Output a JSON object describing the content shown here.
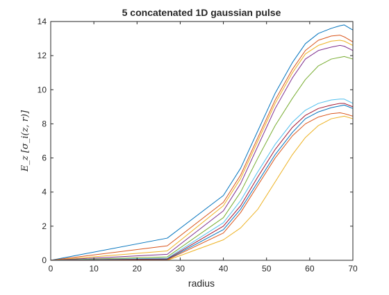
{
  "chart_data": {
    "type": "line",
    "title": "5 concatenated 1D gaussian pulse",
    "xlabel": "radius",
    "ylabel": "E_z [σ_i(z, r)]",
    "xlim": [
      0,
      70
    ],
    "ylim": [
      0,
      14
    ],
    "xticks": [
      0,
      10,
      20,
      30,
      40,
      50,
      60,
      70
    ],
    "yticks": [
      0,
      2,
      4,
      6,
      8,
      10,
      12,
      14
    ],
    "grid": false,
    "legend": "none",
    "x": [
      0,
      27,
      40,
      44,
      48,
      52,
      56,
      59,
      62,
      65,
      67,
      68,
      70
    ],
    "series": [
      {
        "color": "#0072BD",
        "values": [
          0.0,
          1.3,
          3.8,
          5.4,
          7.6,
          9.8,
          11.6,
          12.7,
          13.3,
          13.6,
          13.75,
          13.8,
          13.5
        ]
      },
      {
        "color": "#D95319",
        "values": [
          0.0,
          0.85,
          3.4,
          5.0,
          7.2,
          9.4,
          11.2,
          12.3,
          12.9,
          13.15,
          13.2,
          13.1,
          12.8
        ]
      },
      {
        "color": "#EDB120",
        "values": [
          0.0,
          0.55,
          3.2,
          4.8,
          7.0,
          9.2,
          11.0,
          12.1,
          12.6,
          12.85,
          12.9,
          12.85,
          12.6
        ]
      },
      {
        "color": "#7E2F8E",
        "values": [
          0.0,
          0.35,
          2.9,
          4.5,
          6.7,
          8.9,
          10.7,
          11.8,
          12.3,
          12.5,
          12.6,
          12.55,
          12.3
        ]
      },
      {
        "color": "#77AC30",
        "values": [
          0.0,
          0.2,
          2.5,
          4.0,
          6.0,
          7.9,
          9.5,
          10.6,
          11.4,
          11.8,
          11.9,
          11.95,
          11.8
        ]
      },
      {
        "color": "#4DBEEE",
        "values": [
          0.0,
          0.12,
          2.2,
          3.5,
          5.2,
          6.8,
          8.1,
          8.8,
          9.2,
          9.4,
          9.45,
          9.45,
          9.2
        ]
      },
      {
        "color": "#A2142F",
        "values": [
          0.0,
          0.08,
          2.0,
          3.2,
          4.9,
          6.5,
          7.8,
          8.5,
          8.9,
          9.1,
          9.2,
          9.2,
          9.0
        ]
      },
      {
        "color": "#0072BD",
        "values": [
          0.0,
          0.05,
          1.8,
          3.0,
          4.6,
          6.2,
          7.5,
          8.3,
          8.7,
          8.95,
          9.05,
          9.1,
          8.9
        ]
      },
      {
        "color": "#D95319",
        "values": [
          0.0,
          0.03,
          1.6,
          2.8,
          4.4,
          6.0,
          7.3,
          8.0,
          8.4,
          8.6,
          8.65,
          8.6,
          8.45
        ]
      },
      {
        "color": "#EDB120",
        "values": [
          0.0,
          0.0,
          1.2,
          1.9,
          3.0,
          4.6,
          6.2,
          7.2,
          7.9,
          8.3,
          8.4,
          8.45,
          8.3
        ]
      }
    ]
  }
}
